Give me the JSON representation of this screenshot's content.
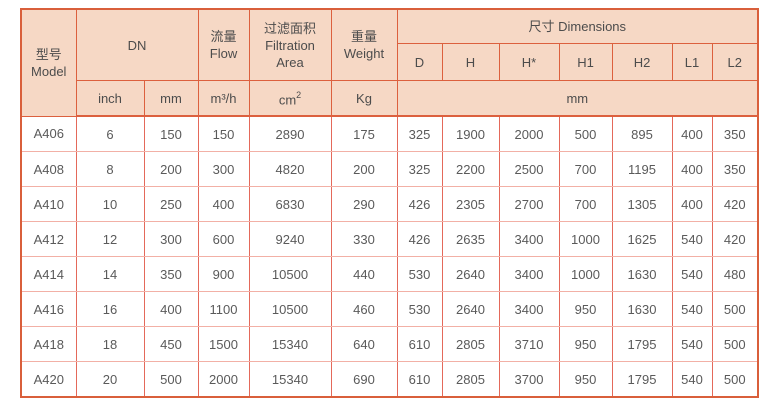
{
  "colors": {
    "header_bg": "#f6d8c5",
    "border_strong": "#dc603e",
    "border_vertical": "#e4695a",
    "border_horizontal": "#f2b0a6",
    "header_text": "#4c4c4c",
    "data_text": "#5a5a5a",
    "page_bg": "#ffffff"
  },
  "table": {
    "header": {
      "model": {
        "zh": "型号",
        "en": "Model"
      },
      "dn": "DN",
      "flow": {
        "zh": "流量",
        "en": "Flow"
      },
      "filtration": {
        "zh": "过滤面积",
        "en1": "Filtration",
        "en2": "Area"
      },
      "weight": {
        "zh": "重量",
        "en": "Weight"
      },
      "dimensions": "尺寸 Dimensions",
      "dim_cols": [
        "D",
        "H",
        "H*",
        "H1",
        "H2",
        "L1",
        "L2"
      ],
      "units": {
        "inch": "inch",
        "mm": "mm",
        "flow": "m³/h",
        "area_base": "cm",
        "area_sup": "2",
        "weight": "Kg",
        "dims_mm": "mm"
      }
    },
    "rows": [
      [
        "A406",
        "6",
        "150",
        "150",
        "2890",
        "175",
        "325",
        "1900",
        "2000",
        "500",
        "895",
        "400",
        "350"
      ],
      [
        "A408",
        "8",
        "200",
        "300",
        "4820",
        "200",
        "325",
        "2200",
        "2500",
        "700",
        "1195",
        "400",
        "350"
      ],
      [
        "A410",
        "10",
        "250",
        "400",
        "6830",
        "290",
        "426",
        "2305",
        "2700",
        "700",
        "1305",
        "400",
        "420"
      ],
      [
        "A412",
        "12",
        "300",
        "600",
        "9240",
        "330",
        "426",
        "2635",
        "3400",
        "1000",
        "1625",
        "540",
        "420"
      ],
      [
        "A414",
        "14",
        "350",
        "900",
        "10500",
        "440",
        "530",
        "2640",
        "3400",
        "1000",
        "1630",
        "540",
        "480"
      ],
      [
        "A416",
        "16",
        "400",
        "1100",
        "10500",
        "460",
        "530",
        "2640",
        "3400",
        "950",
        "1630",
        "540",
        "500"
      ],
      [
        "A418",
        "18",
        "450",
        "1500",
        "15340",
        "640",
        "610",
        "2805",
        "3710",
        "950",
        "1795",
        "540",
        "500"
      ],
      [
        "A420",
        "20",
        "500",
        "2000",
        "15340",
        "690",
        "610",
        "2805",
        "3700",
        "950",
        "1795",
        "540",
        "500"
      ]
    ]
  }
}
